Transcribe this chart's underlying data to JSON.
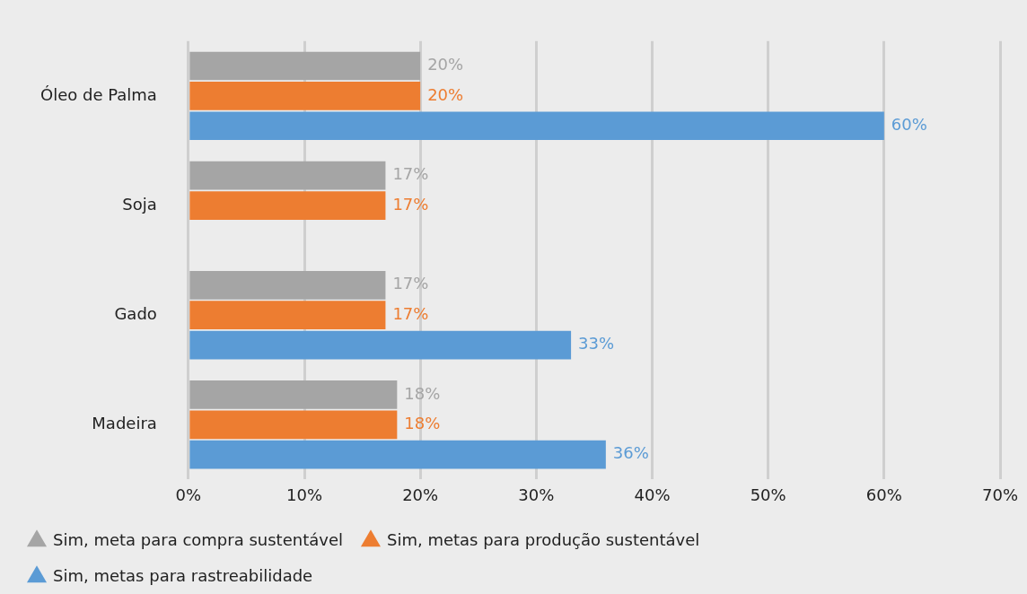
{
  "chart_data": {
    "type": "bar",
    "orientation": "horizontal",
    "categories": [
      "Óleo de Palma",
      "Soja",
      "Gado",
      "Madeira"
    ],
    "series": [
      {
        "name": "Sim, meta para compra sustentável",
        "color": "#a5a5a5",
        "values": [
          20,
          17,
          17,
          18
        ]
      },
      {
        "name": "Sim, metas para produção sustentável",
        "color": "#ed7d31",
        "values": [
          20,
          17,
          17,
          18
        ]
      },
      {
        "name": "Sim, metas para rastreabilidade",
        "color": "#5b9bd5",
        "values": [
          60,
          null,
          33,
          36
        ]
      }
    ],
    "xlim": [
      0,
      70
    ],
    "xticks": [
      {
        "value": 0,
        "label": "0%"
      },
      {
        "value": 10,
        "label": "10%"
      },
      {
        "value": 20,
        "label": "20%"
      },
      {
        "value": 30,
        "label": "30%"
      },
      {
        "value": 40,
        "label": "40%"
      },
      {
        "value": 50,
        "label": "50%"
      },
      {
        "value": 60,
        "label": "60%"
      },
      {
        "value": 70,
        "label": "70%"
      }
    ],
    "value_labels": [
      [
        "20%",
        "17%",
        "17%",
        "18%"
      ],
      [
        "20%",
        "17%",
        "17%",
        "18%"
      ],
      [
        "60%",
        null,
        "33%",
        "36%"
      ]
    ],
    "grid": "x",
    "legend": "bottom"
  }
}
